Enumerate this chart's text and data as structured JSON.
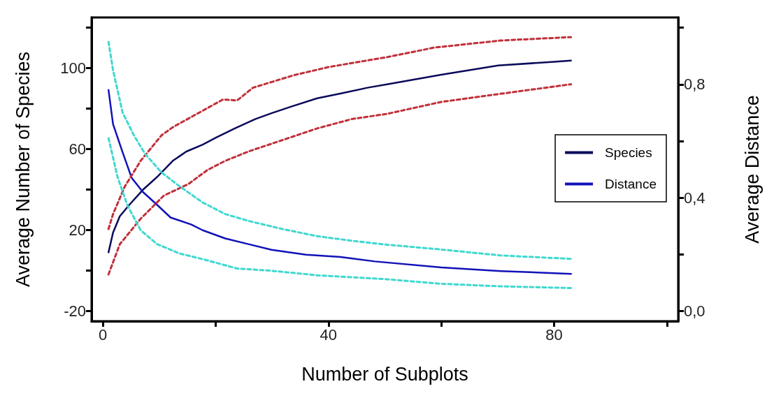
{
  "chart_data": {
    "type": "line",
    "xlabel": "Number of Subplots",
    "ylabel": "Average Number of Species",
    "y2label": "Average Distance",
    "xlim": [
      -2,
      102
    ],
    "xticks": [
      0,
      {
        "value": 20,
        "label": null
      },
      40,
      {
        "value": 60,
        "label": null
      },
      80,
      {
        "value": 100,
        "label": null
      }
    ],
    "ylim": [
      -25,
      125
    ],
    "yticks": [
      -20,
      {
        "value": 0,
        "label": null
      },
      20,
      {
        "value": 40,
        "label": null
      },
      60,
      {
        "value": 80,
        "label": null
      },
      100,
      {
        "value": 120,
        "label": null
      }
    ],
    "y2lim": [
      -0.036,
      1.036
    ],
    "y2ticks": [
      {
        "value": 0,
        "label": "0,0"
      },
      {
        "value": 0.2,
        "label": null
      },
      {
        "value": 0.4,
        "label": "0,4"
      },
      {
        "value": 0.6,
        "label": null
      },
      {
        "value": 0.8,
        "label": "0,8"
      },
      {
        "value": 1.0,
        "label": null
      }
    ],
    "grid": false,
    "legend": "right",
    "marker": "none",
    "series": [
      {
        "name": "Species",
        "color": "#0a0a5a",
        "line_style": "solid",
        "x": [
          1,
          1.8,
          3,
          4.7,
          7.1,
          9.6,
          12.4,
          14.8,
          17.7,
          20.1,
          23.4,
          27,
          29.9,
          33.5,
          38,
          42.1,
          46.9,
          50.4,
          60,
          70.1,
          80,
          83
        ],
        "values": [
          9,
          18.7,
          26.8,
          32.5,
          39.9,
          46.2,
          54.2,
          58.8,
          62.2,
          65.7,
          70.2,
          74.8,
          77.7,
          81.1,
          85.1,
          87.4,
          90.3,
          92,
          96.7,
          101.3,
          103.1,
          103.7
        ]
      },
      {
        "name": "Distance",
        "color": "#1212b8",
        "line_style": "solid",
        "axis": "y2",
        "x": [
          1,
          1.8,
          3.5,
          5.1,
          7.1,
          9.6,
          12,
          15.7,
          17.7,
          21.7,
          25.8,
          29.9,
          36,
          42.1,
          48.2,
          60,
          70.5,
          83
        ],
        "values": [
          0.78,
          0.66,
          0.56,
          0.47,
          0.42,
          0.375,
          0.33,
          0.305,
          0.285,
          0.256,
          0.236,
          0.216,
          0.199,
          0.191,
          0.175,
          0.154,
          0.141,
          0.131
        ]
      },
      {
        "color": "#c0303a",
        "line_style": "dashed",
        "x": [
          1,
          1.8,
          3.9,
          6.7,
          10.4,
          12.4,
          16.1,
          21.3,
          23.8,
          26.6,
          33.9,
          40,
          46.1,
          50.4,
          58.7,
          70.5,
          83
        ],
        "values": [
          20.5,
          27.9,
          41.6,
          54.2,
          66.8,
          70.8,
          76.5,
          84.5,
          84,
          90.3,
          96.5,
          100.5,
          103.4,
          105.4,
          110.1,
          113.6,
          115.3
        ]
      },
      {
        "color": "#c0303a",
        "line_style": "dashed",
        "x": [
          1,
          3,
          6.7,
          10.8,
          15.2,
          18.5,
          21.7,
          25.8,
          31.9,
          38,
          44.1,
          50.4,
          60,
          70.5,
          83
        ],
        "values": [
          -1.9,
          13,
          25.6,
          37,
          42.8,
          49.6,
          54.2,
          58.8,
          64.5,
          70.2,
          74.8,
          77.4,
          83.3,
          87.3,
          92
        ]
      },
      {
        "color": "#40d8d0",
        "line_style": "dashed",
        "axis": "y2",
        "x": [
          1,
          1.8,
          3.5,
          5.5,
          7.5,
          10.4,
          13.6,
          17.7,
          21.7,
          25.8,
          31.9,
          38,
          44.1,
          50.4,
          60,
          70.5,
          83
        ],
        "values": [
          0.95,
          0.85,
          0.7,
          0.62,
          0.554,
          0.489,
          0.44,
          0.383,
          0.342,
          0.318,
          0.289,
          0.264,
          0.248,
          0.234,
          0.217,
          0.196,
          0.184
        ]
      },
      {
        "color": "#40d8d0",
        "line_style": "dashed",
        "axis": "y2",
        "x": [
          1,
          2.6,
          4.3,
          6.7,
          9.6,
          13.6,
          17.7,
          23.8,
          29.9,
          38,
          46.1,
          50.4,
          60,
          70.5,
          83
        ],
        "values": [
          0.61,
          0.473,
          0.375,
          0.285,
          0.236,
          0.203,
          0.183,
          0.15,
          0.142,
          0.126,
          0.117,
          0.112,
          0.096,
          0.087,
          0.081
        ]
      }
    ]
  }
}
